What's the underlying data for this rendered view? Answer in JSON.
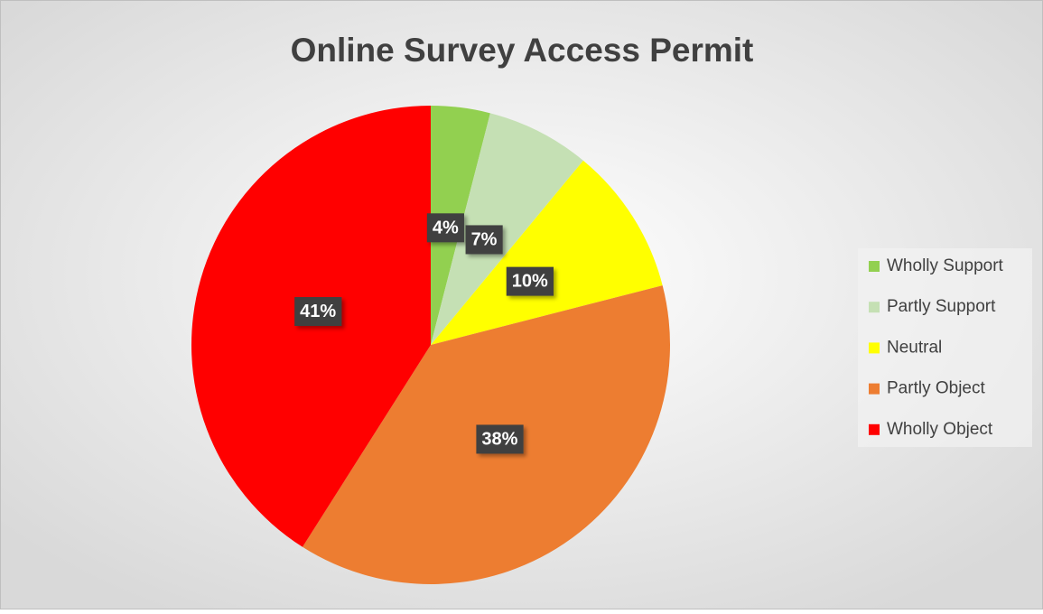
{
  "chart_data": {
    "type": "pie",
    "title": "Online Survey Access Permit",
    "categories": [
      "Wholly Support",
      "Partly Support",
      "Neutral",
      "Partly Object",
      "Wholly Object"
    ],
    "values": [
      4,
      7,
      10,
      38,
      41
    ],
    "value_labels": [
      "4%",
      "7%",
      "10%",
      "38%",
      "41%"
    ],
    "colors": [
      "#92d050",
      "#c5e0b4",
      "#ffff00",
      "#ed7d31",
      "#ff0000"
    ],
    "legend": "right"
  }
}
